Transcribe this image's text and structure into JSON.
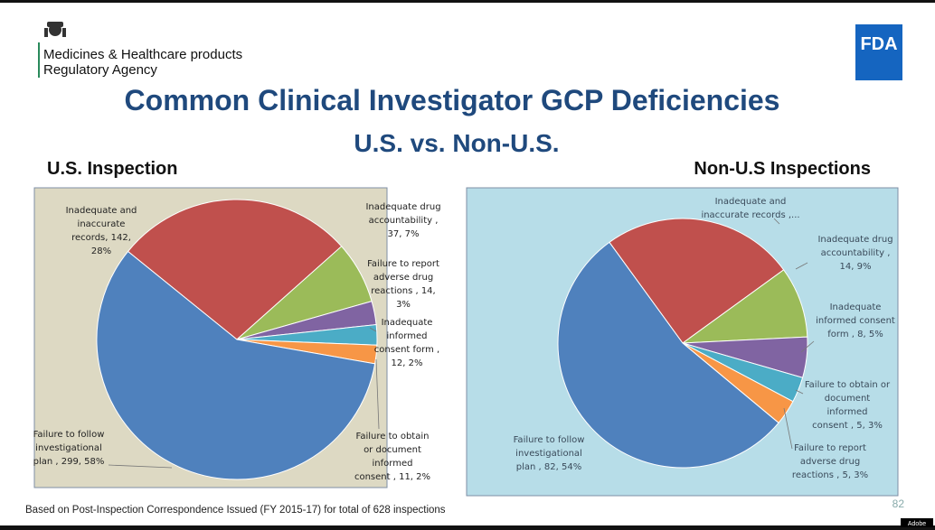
{
  "header": {
    "agency": [
      "Medicines & Healthcare products",
      "Regulatory Agency"
    ],
    "fda_logo": "FDA",
    "title": "Common Clinical Investigator GCP Deficiencies",
    "subtitle": "U.S. vs. Non-U.S."
  },
  "chart_data": [
    {
      "type": "pie",
      "title": "U.S. Inspection",
      "values": [
        142,
        37,
        14,
        12,
        11,
        299
      ],
      "value_labels": [
        "Inadequate and\ninaccurate\nrecords, 142,\n28%",
        "Inadequate drug\naccountability ,\n37, 7%",
        "Failure to report\nadverse drug\nreactions , 14,\n3%",
        "Inadequate\ninformed\nconsent form ,\n12, 2%",
        "Failure to obtain\nor document\ninformed\nconsent , 11, 2%",
        "Failure to follow\ninvestigational\nplan , 299, 58%"
      ],
      "colors": [
        "#c0504d",
        "#9bbb59",
        "#8064a2",
        "#4bacc6",
        "#f79646",
        "#4f81bd"
      ],
      "background": "#ddd9c3"
    },
    {
      "type": "pie",
      "title": "Non-U.S Inspections",
      "values": [
        38,
        14,
        8,
        5,
        5,
        82
      ],
      "value_labels": [
        "Inadequate and\ninaccurate records ,...",
        "Inadequate drug\naccountability ,\n14, 9%",
        "Inadequate\ninformed consent\nform , 8, 5%",
        "Failure to obtain or\ndocument informed\nconsent , 5, 3%",
        "Failure to report\nadverse drug\nreactions , 5, 3%",
        "Failure to follow\ninvestigational\nplan , 82, 54%"
      ],
      "colors": [
        "#c0504d",
        "#9bbb59",
        "#8064a2",
        "#4bacc6",
        "#f79646",
        "#4f81bd"
      ],
      "background": "#b7dde8"
    }
  ],
  "footer": {
    "note": "Based on Post-Inspection Correspondence Issued (FY 2015-17) for total of 628 inspections",
    "page": "82",
    "watermark": "Adobe"
  }
}
